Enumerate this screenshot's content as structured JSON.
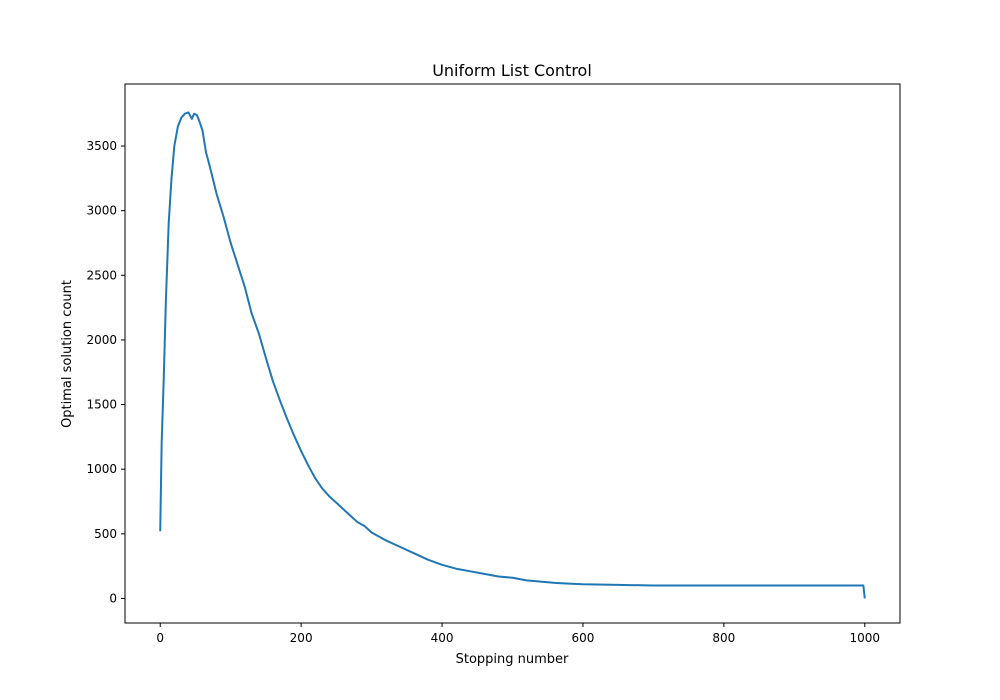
{
  "chart_data": {
    "type": "line",
    "title": "Uniform List Control",
    "xlabel": "Stopping number",
    "ylabel": "Optimal solution count",
    "xlim": [
      -50,
      1050
    ],
    "ylim": [
      -190,
      3980
    ],
    "xticks": [
      0,
      200,
      400,
      600,
      800,
      1000
    ],
    "yticks": [
      0,
      500,
      1000,
      1500,
      2000,
      2500,
      3000,
      3500
    ],
    "grid": false,
    "legend": "none",
    "series": [
      {
        "color": "#1f77b4",
        "x": [
          0,
          2,
          5,
          8,
          12,
          16,
          20,
          25,
          30,
          35,
          40,
          45,
          48,
          50,
          52,
          55,
          60,
          65,
          70,
          80,
          90,
          100,
          110,
          120,
          130,
          140,
          150,
          160,
          170,
          180,
          190,
          200,
          210,
          220,
          230,
          240,
          250,
          260,
          270,
          280,
          290,
          300,
          320,
          340,
          360,
          380,
          400,
          420,
          440,
          460,
          480,
          500,
          520,
          540,
          560,
          580,
          600,
          650,
          700,
          750,
          800,
          850,
          900,
          950,
          998,
          1000
        ],
        "y": [
          520,
          1200,
          1700,
          2300,
          2900,
          3250,
          3500,
          3650,
          3720,
          3750,
          3760,
          3710,
          3750,
          3745,
          3740,
          3700,
          3620,
          3450,
          3350,
          3130,
          2950,
          2750,
          2580,
          2410,
          2200,
          2050,
          1860,
          1680,
          1530,
          1390,
          1260,
          1140,
          1030,
          930,
          850,
          790,
          740,
          690,
          640,
          590,
          560,
          510,
          450,
          400,
          350,
          300,
          260,
          230,
          210,
          190,
          170,
          160,
          140,
          130,
          120,
          115,
          110,
          105,
          100,
          100,
          100,
          100,
          100,
          100,
          100,
          0
        ]
      }
    ]
  }
}
